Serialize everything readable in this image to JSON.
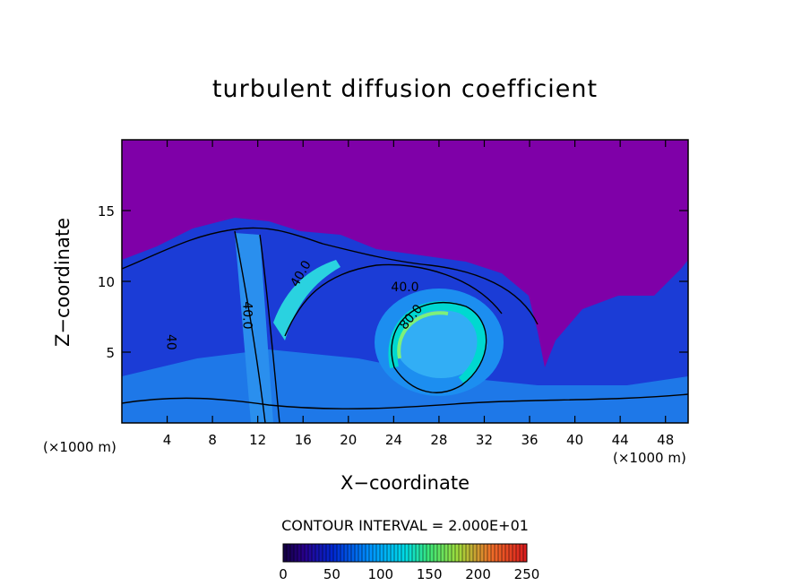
{
  "chart_data": {
    "type": "heatmap",
    "title": "turbulent diffusion coefficient",
    "xlabel": "X−coordinate",
    "ylabel": "Z−coordinate",
    "x_unit_left": "(×1000 m)",
    "x_unit_right": "(×1000 m)",
    "xlim": [
      0,
      50
    ],
    "ylim": [
      0,
      20
    ],
    "x_ticks": [
      4,
      8,
      12,
      16,
      20,
      24,
      28,
      32,
      36,
      40,
      44,
      48
    ],
    "y_ticks": [
      5,
      10,
      15
    ],
    "contour_interval_label": "CONTOUR INTERVAL = 2.000E+01",
    "contour_interval": 20,
    "contour_labels": [
      {
        "text": "40.0",
        "x": 10.7,
        "z": 7.6
      },
      {
        "text": "40.0",
        "x": 16.1,
        "z": 10.4
      },
      {
        "text": "40.0",
        "x": 25.0,
        "z": 9.3
      },
      {
        "text": "80.0",
        "x": 25.8,
        "z": 7.3
      },
      {
        "text": "40",
        "x": 4.0,
        "z": 5.7
      }
    ],
    "colorbar": {
      "min": 0,
      "max": 250,
      "ticks": [
        0,
        50,
        100,
        150,
        200,
        250
      ],
      "colormap": "rainbow (purple-blue-cyan-green-red)"
    },
    "background_value_color": "#7f00a8"
  }
}
